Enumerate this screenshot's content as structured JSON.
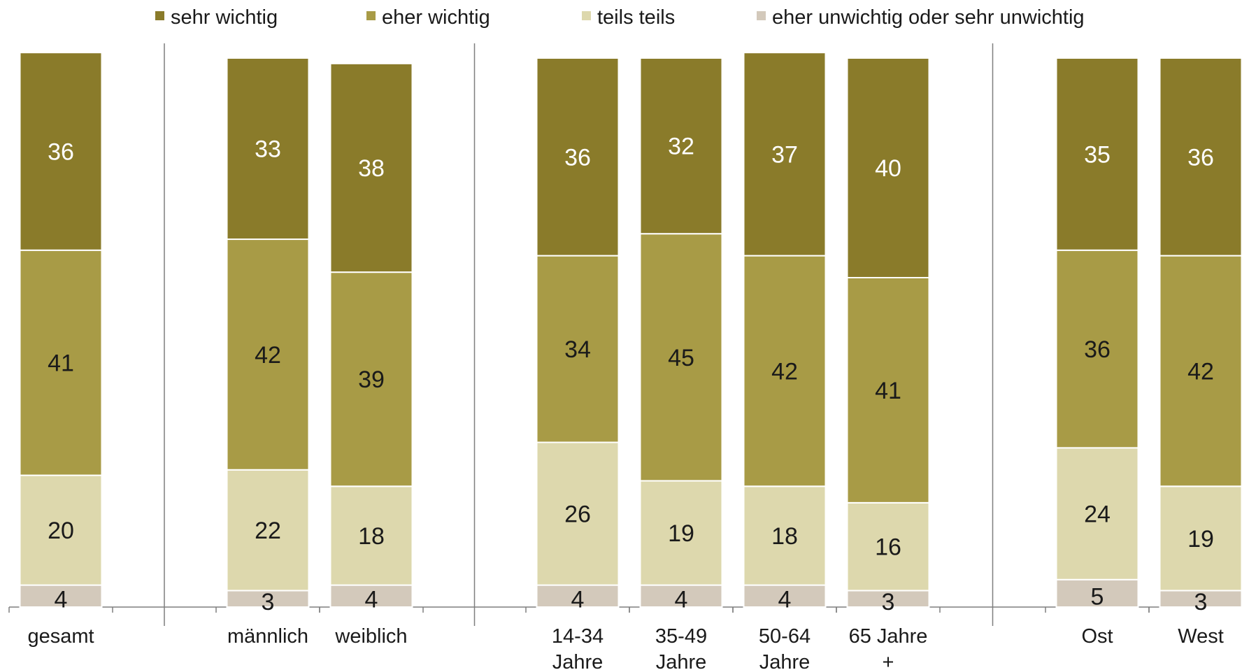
{
  "chart_data": {
    "type": "bar",
    "stacked": true,
    "legend": {
      "placement": "top"
    },
    "grid": false,
    "colors": {
      "sehr wichtig": "#8a7b2a",
      "eher wichtig": "#a89b46",
      "teils teils": "#ddd8ad",
      "eher unwichtig oder sehr unwichtig": "#d3c9bb"
    },
    "label_colors": {
      "sehr wichtig": "#ffffff",
      "eher wichtig": "#1a1a1a",
      "teils teils": "#1a1a1a",
      "eher unwichtig oder sehr unwichtig": "#1a1a1a"
    },
    "series_order_bottom_to_top": [
      "eher unwichtig oder sehr unwichtig",
      "teils teils",
      "eher wichtig",
      "sehr wichtig"
    ],
    "legend_order": [
      "sehr wichtig",
      "eher wichtig",
      "teils teils",
      "eher unwichtig oder sehr unwichtig"
    ],
    "groups": [
      {
        "categories": [
          {
            "label": [
              "gesamt"
            ],
            "values": {
              "sehr wichtig": 36,
              "eher wichtig": 41,
              "teils teils": 20,
              "eher unwichtig oder sehr unwichtig": 4
            }
          }
        ]
      },
      {
        "categories": [
          {
            "label": [
              "männlich"
            ],
            "values": {
              "sehr wichtig": 33,
              "eher wichtig": 42,
              "teils teils": 22,
              "eher unwichtig oder sehr unwichtig": 3
            }
          },
          {
            "label": [
              "weiblich"
            ],
            "values": {
              "sehr wichtig": 38,
              "eher wichtig": 39,
              "teils teils": 18,
              "eher unwichtig oder sehr unwichtig": 4
            }
          }
        ]
      },
      {
        "categories": [
          {
            "label": [
              "14-34",
              "Jahre"
            ],
            "values": {
              "sehr wichtig": 36,
              "eher wichtig": 34,
              "teils teils": 26,
              "eher unwichtig oder sehr unwichtig": 4
            }
          },
          {
            "label": [
              "35-49",
              "Jahre"
            ],
            "values": {
              "sehr wichtig": 32,
              "eher wichtig": 45,
              "teils teils": 19,
              "eher unwichtig oder sehr unwichtig": 4
            }
          },
          {
            "label": [
              "50-64",
              "Jahre"
            ],
            "values": {
              "sehr wichtig": 37,
              "eher wichtig": 42,
              "teils teils": 18,
              "eher unwichtig oder sehr unwichtig": 4
            }
          },
          {
            "label": [
              "65 Jahre",
              "+"
            ],
            "values": {
              "sehr wichtig": 40,
              "eher wichtig": 41,
              "teils teils": 16,
              "eher unwichtig oder sehr unwichtig": 3
            }
          }
        ]
      },
      {
        "categories": [
          {
            "label": [
              "Ost"
            ],
            "values": {
              "sehr wichtig": 35,
              "eher wichtig": 36,
              "teils teils": 24,
              "eher unwichtig oder sehr unwichtig": 5
            }
          },
          {
            "label": [
              "West"
            ],
            "values": {
              "sehr wichtig": 36,
              "eher wichtig": 42,
              "teils teils": 19,
              "eher unwichtig oder sehr unwichtig": 3
            }
          }
        ]
      }
    ]
  }
}
